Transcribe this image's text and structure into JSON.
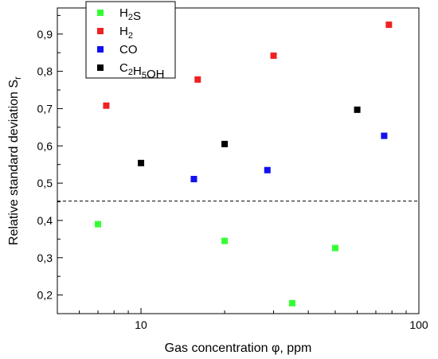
{
  "chart_data": {
    "type": "scatter",
    "xlabel": "Gas concentration φ, ppm",
    "ylabel": "Relative standard deviation S",
    "ylabel_subscript": "r",
    "xscale": "log",
    "xlim": [
      5,
      100
    ],
    "ylim": [
      0.15,
      0.97
    ],
    "x_ticks": [
      {
        "value": 10,
        "label": "10"
      },
      {
        "value": 100,
        "label": "100"
      }
    ],
    "y_ticks": [
      {
        "value": 0.2,
        "label": "0,2"
      },
      {
        "value": 0.3,
        "label": "0,3"
      },
      {
        "value": 0.4,
        "label": "0,4"
      },
      {
        "value": 0.5,
        "label": "0,5"
      },
      {
        "value": 0.6,
        "label": "0,6"
      },
      {
        "value": 0.7,
        "label": "0,7"
      },
      {
        "value": 0.8,
        "label": "0,8"
      },
      {
        "value": 0.9,
        "label": "0,9"
      }
    ],
    "reference_line": {
      "y": 0.452,
      "style": "dashed"
    },
    "legend_position": "top-left",
    "series": [
      {
        "name": "H2S",
        "label_parts": [
          [
            "H",
            ""
          ],
          [
            "2",
            "sub"
          ],
          [
            "S",
            ""
          ]
        ],
        "color": "#33ff33",
        "points": [
          {
            "x": 7,
            "y": 0.39
          },
          {
            "x": 20,
            "y": 0.345
          },
          {
            "x": 35,
            "y": 0.178
          },
          {
            "x": 50,
            "y": 0.326
          }
        ]
      },
      {
        "name": "H2",
        "label_parts": [
          [
            "H",
            ""
          ],
          [
            "2",
            "sub"
          ]
        ],
        "color": "#ee2222",
        "points": [
          {
            "x": 7.5,
            "y": 0.708
          },
          {
            "x": 16,
            "y": 0.778
          },
          {
            "x": 30,
            "y": 0.842
          },
          {
            "x": 78,
            "y": 0.925
          }
        ]
      },
      {
        "name": "CO",
        "label_parts": [
          [
            "CO",
            ""
          ]
        ],
        "color": "#1111ee",
        "points": [
          {
            "x": 15.5,
            "y": 0.511
          },
          {
            "x": 28.5,
            "y": 0.535
          },
          {
            "x": 75,
            "y": 0.627
          }
        ]
      },
      {
        "name": "C2H5OH",
        "label_parts": [
          [
            "C",
            ""
          ],
          [
            "2",
            "sub"
          ],
          [
            "H",
            ""
          ],
          [
            "5",
            "sub"
          ],
          [
            "OH",
            ""
          ]
        ],
        "color": "#000000",
        "points": [
          {
            "x": 10,
            "y": 0.554
          },
          {
            "x": 20,
            "y": 0.605
          },
          {
            "x": 60,
            "y": 0.697
          }
        ]
      }
    ]
  }
}
